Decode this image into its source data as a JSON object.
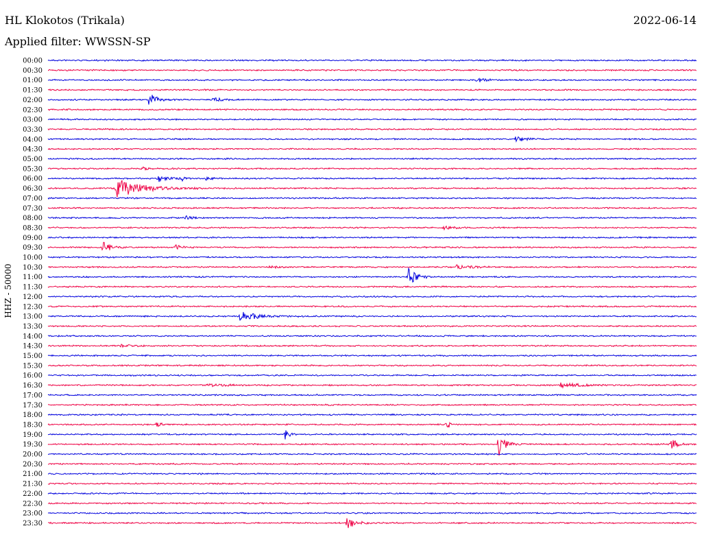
{
  "header": {
    "station": "HL Klokotos (Trikala)",
    "filter": "Applied filter: WWSSN-SP",
    "date": "2022-06-14"
  },
  "colors": {
    "even_trace": "#0000dd",
    "odd_trace": "#ee0044"
  },
  "chart_data": {
    "type": "line",
    "title": "HL Klokotos (Trikala)",
    "subtitle": "Applied filter: WWSSN-SP",
    "ylabel": "HHZ - 50000",
    "xlabel": "",
    "rows": [
      "00:00",
      "00:30",
      "01:00",
      "01:30",
      "02:00",
      "02:30",
      "03:00",
      "03:30",
      "04:00",
      "04:30",
      "05:00",
      "05:30",
      "06:00",
      "06:30",
      "07:00",
      "07:30",
      "08:00",
      "08:30",
      "09:00",
      "09:30",
      "10:00",
      "10:30",
      "11:00",
      "11:30",
      "12:00",
      "12:30",
      "13:00",
      "13:30",
      "14:00",
      "14:30",
      "15:00",
      "15:30",
      "16:00",
      "16:30",
      "17:00",
      "17:30",
      "18:00",
      "18:30",
      "19:00",
      "19:30",
      "20:00",
      "20:30",
      "21:00",
      "21:30",
      "22:00",
      "22:30",
      "23:00",
      "23:30"
    ],
    "row_minutes": 30,
    "x_range_fraction": [
      0,
      1
    ],
    "events": [
      {
        "row": 2,
        "t": 0.66,
        "amp": 4,
        "dur": 0.012
      },
      {
        "row": 4,
        "t": 0.155,
        "amp": 11,
        "dur": 0.01
      },
      {
        "row": 4,
        "t": 0.255,
        "amp": 3,
        "dur": 0.012
      },
      {
        "row": 8,
        "t": 0.72,
        "amp": 4,
        "dur": 0.015
      },
      {
        "row": 11,
        "t": 0.145,
        "amp": 2,
        "dur": 0.012
      },
      {
        "row": 12,
        "t": 0.17,
        "amp": 5,
        "dur": 0.01
      },
      {
        "row": 12,
        "t": 0.203,
        "amp": 8,
        "dur": 0.004
      },
      {
        "row": 12,
        "t": 0.24,
        "amp": 4,
        "dur": 0.006
      },
      {
        "row": 13,
        "t": 0.105,
        "amp": 14,
        "dur": 0.035
      },
      {
        "row": 16,
        "t": 0.212,
        "amp": 3,
        "dur": 0.008
      },
      {
        "row": 17,
        "t": 0.61,
        "amp": 2,
        "dur": 0.02
      },
      {
        "row": 19,
        "t": 0.085,
        "amp": 12,
        "dur": 0.008
      },
      {
        "row": 19,
        "t": 0.195,
        "amp": 6,
        "dur": 0.006
      },
      {
        "row": 21,
        "t": 0.34,
        "amp": 2,
        "dur": 0.015
      },
      {
        "row": 21,
        "t": 0.63,
        "amp": 3,
        "dur": 0.02
      },
      {
        "row": 22,
        "t": 0.555,
        "amp": 16,
        "dur": 0.01
      },
      {
        "row": 26,
        "t": 0.295,
        "amp": 7,
        "dur": 0.025
      },
      {
        "row": 29,
        "t": 0.11,
        "amp": 2,
        "dur": 0.015
      },
      {
        "row": 33,
        "t": 0.245,
        "amp": 2,
        "dur": 0.04
      },
      {
        "row": 33,
        "t": 0.79,
        "amp": 3,
        "dur": 0.03
      },
      {
        "row": 37,
        "t": 0.168,
        "amp": 7,
        "dur": 0.004
      },
      {
        "row": 37,
        "t": 0.615,
        "amp": 8,
        "dur": 0.004
      },
      {
        "row": 38,
        "t": 0.365,
        "amp": 8,
        "dur": 0.005
      },
      {
        "row": 39,
        "t": 0.695,
        "amp": 20,
        "dur": 0.008
      },
      {
        "row": 39,
        "t": 0.96,
        "amp": 10,
        "dur": 0.008
      },
      {
        "row": 47,
        "t": 0.46,
        "amp": 9,
        "dur": 0.012
      }
    ]
  }
}
